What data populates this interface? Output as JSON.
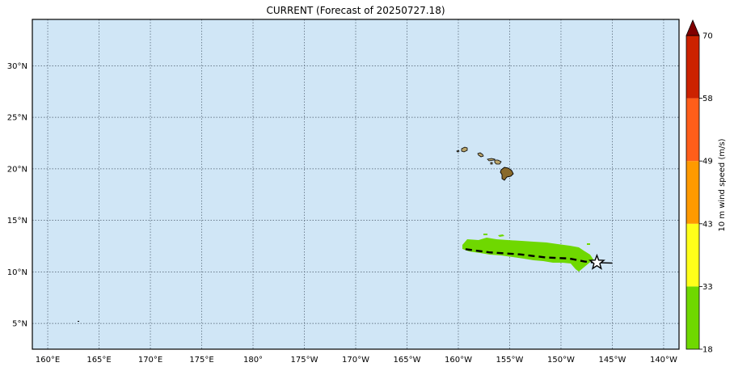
{
  "title": "CURRENT (Forecast of 20250727.18)",
  "map": {
    "ocean_color": "#d0e6f6",
    "grid": true,
    "lon_range_deg_east": [
      158.5,
      221.5
    ],
    "lat_range": [
      2.5,
      34.5
    ],
    "lon_ticks": [
      {
        "value": 160,
        "label": "160°E"
      },
      {
        "value": 165,
        "label": "165°E"
      },
      {
        "value": 170,
        "label": "170°E"
      },
      {
        "value": 175,
        "label": "175°E"
      },
      {
        "value": 180,
        "label": "180°"
      },
      {
        "value": 185,
        "label": "175°W"
      },
      {
        "value": 190,
        "label": "170°W"
      },
      {
        "value": 195,
        "label": "165°W"
      },
      {
        "value": 200,
        "label": "160°W"
      },
      {
        "value": 205,
        "label": "155°W"
      },
      {
        "value": 210,
        "label": "150°W"
      },
      {
        "value": 215,
        "label": "145°W"
      },
      {
        "value": 220,
        "label": "140°W"
      }
    ],
    "lat_ticks": [
      {
        "value": 5,
        "label": "5°N"
      },
      {
        "value": 10,
        "label": "10°N"
      },
      {
        "value": 15,
        "label": "15°N"
      },
      {
        "value": 20,
        "label": "20°N"
      },
      {
        "value": 25,
        "label": "25°N"
      },
      {
        "value": 30,
        "label": "30°N"
      }
    ],
    "storm_current_position": {
      "lon": 213.5,
      "lat": 10.9,
      "marker": "star-icon"
    },
    "forecast_track_dashed": [
      [
        200.7,
        12.2
      ],
      [
        203,
        11.9
      ],
      [
        206,
        11.7
      ],
      [
        208.5,
        11.4
      ],
      [
        210.8,
        11.3
      ],
      [
        212.3,
        11.0
      ],
      [
        213.5,
        10.9
      ]
    ],
    "past_track_solid": [
      [
        213.5,
        10.9
      ],
      [
        215,
        10.85
      ]
    ],
    "wind_swath_color": "#6fd800"
  },
  "colorbar": {
    "label": "10 m wind speed (m/s)",
    "levels": [
      {
        "from": 18,
        "to": 33,
        "color": "#6fd800",
        "label": "18"
      },
      {
        "from": 33,
        "to": 43,
        "color": "#ffff1a",
        "label": "33"
      },
      {
        "from": 43,
        "to": 49,
        "color": "#ff9a00",
        "label": "43"
      },
      {
        "from": 49,
        "to": 58,
        "color": "#ff5e1a",
        "label": "49"
      },
      {
        "from": 58,
        "to": 70,
        "color": "#cc2200",
        "label": "58"
      }
    ],
    "top_label": "70",
    "extend_color": "#800000"
  }
}
